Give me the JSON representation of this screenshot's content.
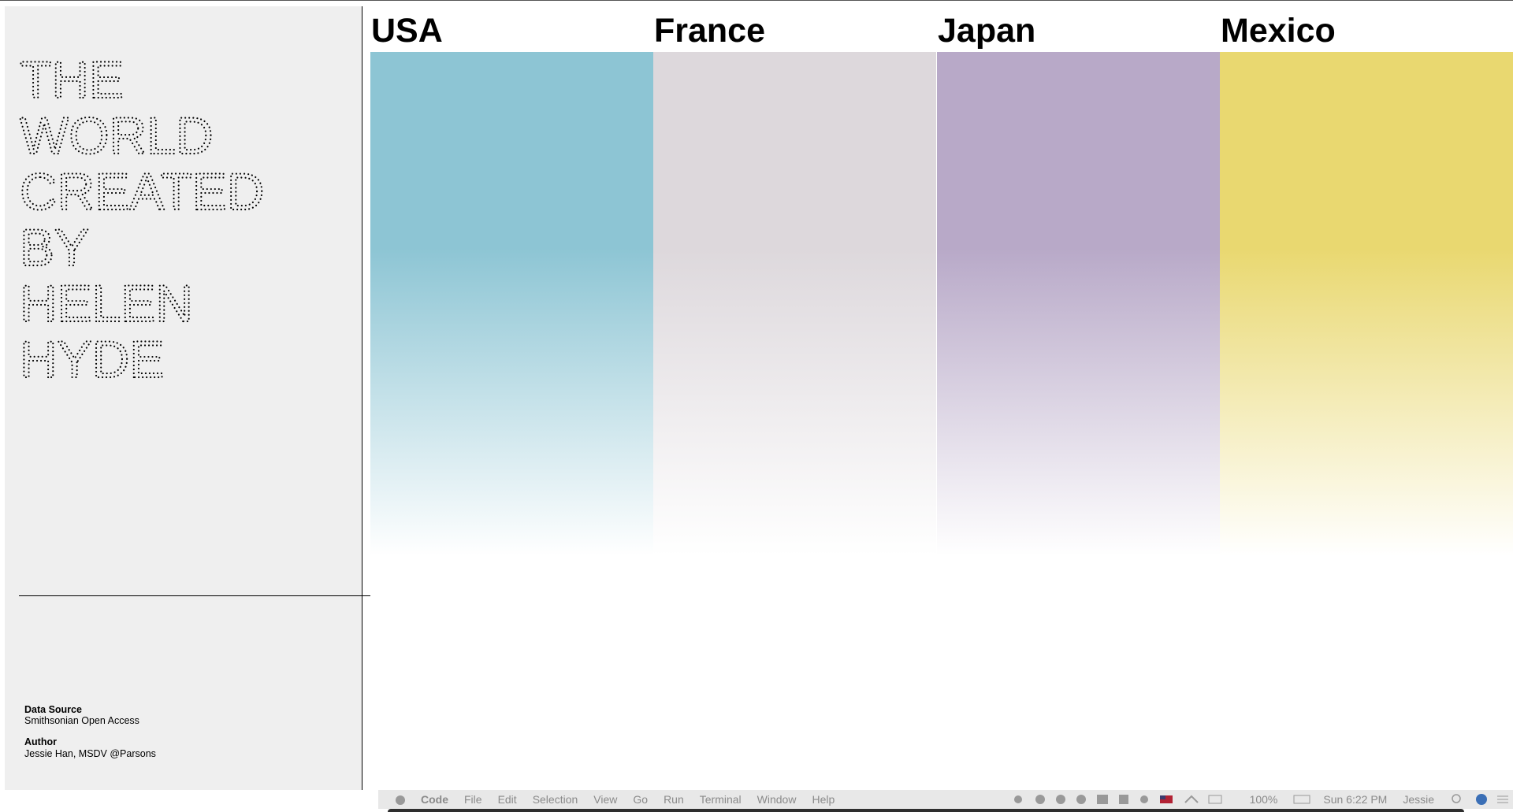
{
  "sidebar": {
    "title_lines": [
      "THE",
      "WORLD",
      "CREATED",
      "BY",
      "HELEN",
      "HYDE"
    ],
    "data_source_label": "Data Source",
    "data_source": "Smithsonian Open Access",
    "author_label": "Author",
    "author": "Jessie Han, MSDV @Parsons"
  },
  "columns": [
    {
      "name": "USA",
      "color": "#8dc5d4"
    },
    {
      "name": "France",
      "color": "#ddd8dc"
    },
    {
      "name": "Japan",
      "color": "#b8a9c8"
    },
    {
      "name": "Mexico",
      "color": "#e9d870"
    }
  ],
  "menu_bar": {
    "app": "Code",
    "items": [
      "File",
      "Edit",
      "Selection",
      "View",
      "Go",
      "Run",
      "Terminal",
      "Window",
      "Help"
    ],
    "battery": "100%",
    "clock": "Sun 6:22 PM",
    "user": "Jessie"
  }
}
